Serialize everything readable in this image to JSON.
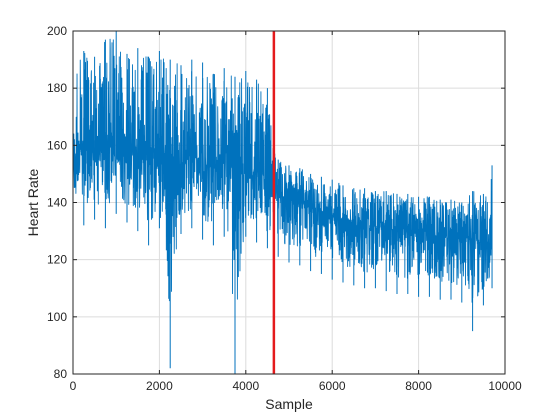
{
  "chart_data": {
    "type": "line",
    "xlabel": "Sample",
    "ylabel": "Heart Rate",
    "xlim": [
      0,
      10000
    ],
    "ylim": [
      80,
      200
    ],
    "x_ticks": [
      0,
      2000,
      4000,
      6000,
      8000,
      10000
    ],
    "y_ticks": [
      80,
      100,
      120,
      140,
      160,
      180,
      200
    ],
    "grid": true,
    "changepoint_x": 4650,
    "colors": {
      "series": "#0072BD",
      "changepoint": "#E41A1C",
      "grid": "#DCDCDC",
      "axis": "#262626"
    },
    "series": [
      {
        "x": [
          0,
          250,
          500,
          750,
          1000,
          1250,
          1500,
          1750,
          2000,
          2250,
          2500,
          2750,
          3000,
          3250,
          3500,
          3750,
          4000,
          4250,
          4500,
          4650,
          4750,
          5000,
          5250,
          5500,
          5750,
          6000,
          6250,
          6500,
          6750,
          7000,
          7250,
          7500,
          7750,
          8000,
          8250,
          8500,
          8750,
          9000,
          9250,
          9500,
          9700
        ],
        "y": [
          155,
          160,
          157,
          159,
          158,
          156,
          157,
          155,
          156,
          157,
          154,
          156,
          155,
          152,
          154,
          153,
          150,
          151,
          148,
          145,
          143,
          141,
          140,
          138,
          137,
          135,
          134,
          133,
          132,
          132,
          131,
          130,
          130,
          129,
          129,
          128,
          128,
          127,
          127,
          126,
          125
        ],
        "min": [
          140,
          132,
          134,
          131,
          136,
          133,
          130,
          125,
          131,
          82,
          129,
          131,
          127,
          125,
          128,
          80,
          128,
          126,
          124,
          122,
          121,
          119,
          118,
          116,
          115,
          113,
          112,
          111,
          110,
          110,
          109,
          108,
          108,
          107,
          107,
          106,
          106,
          105,
          95,
          104,
          110
        ],
        "max": [
          188,
          193,
          191,
          197,
          200,
          192,
          194,
          191,
          193,
          190,
          188,
          190,
          189,
          185,
          187,
          184,
          186,
          183,
          180,
          160,
          155,
          153,
          152,
          150,
          149,
          148,
          146,
          145,
          145,
          144,
          144,
          143,
          143,
          142,
          142,
          141,
          141,
          140,
          144,
          143,
          153
        ]
      }
    ]
  }
}
